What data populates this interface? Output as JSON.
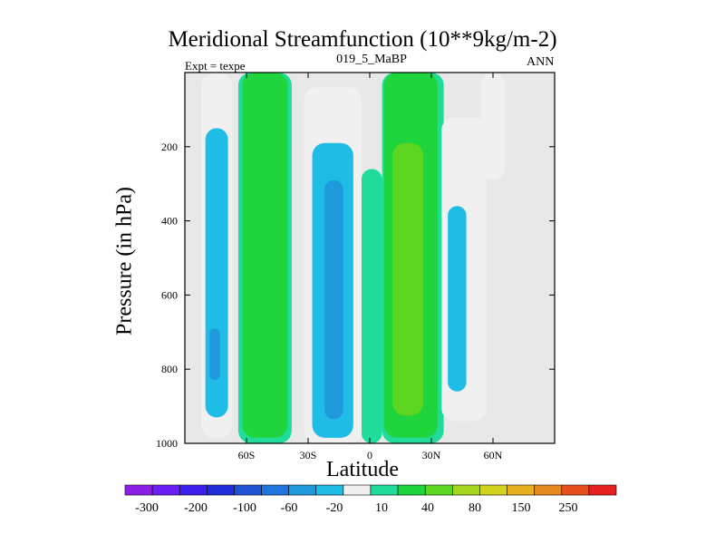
{
  "title": "Meridional Streamfunction (10**9kg/m-2)",
  "subtitle": "019_5_MaBP",
  "expt_label": "Expt = texpe",
  "season": "ANN",
  "chart_data": {
    "type": "heatmap",
    "title": "Meridional Streamfunction (10**9kg/m-2)",
    "subtitle": "019_5_MaBP",
    "xlabel": "Latitude",
    "ylabel": "Pressure (in hPa)",
    "xlim": [
      -90,
      90
    ],
    "ylim": [
      1000,
      0
    ],
    "x_ticks": [
      {
        "value": -60,
        "label": "60S"
      },
      {
        "value": -30,
        "label": "30S"
      },
      {
        "value": 0,
        "label": "0"
      },
      {
        "value": 30,
        "label": "30N"
      },
      {
        "value": 60,
        "label": "60N"
      }
    ],
    "y_ticks": [
      {
        "value": 200,
        "label": "200"
      },
      {
        "value": 400,
        "label": "400"
      },
      {
        "value": 600,
        "label": "600"
      },
      {
        "value": 800,
        "label": "800"
      },
      {
        "value": 1000,
        "label": "1000"
      }
    ],
    "background_color": "#e8e8e8",
    "colorbar": {
      "labels": [
        "-300",
        "-200",
        "-100",
        "-60",
        "-20",
        "10",
        "40",
        "80",
        "150",
        "250"
      ],
      "colors": [
        "#8c1fe6",
        "#6a1ff2",
        "#3c1fea",
        "#1f2bd9",
        "#1f52d4",
        "#1f75d9",
        "#1f98dc",
        "#1fbce6",
        "#f0f0f0",
        "#1fdc9a",
        "#1fd43c",
        "#5cd71f",
        "#a5d71f",
        "#d2d21f",
        "#e6b01f",
        "#e6891f",
        "#e6521f",
        "#e61f1f"
      ]
    },
    "cells": [
      {
        "name": "cell-60s-outer",
        "lat": [
          -82,
          -67
        ],
        "p": [
          0,
          985
        ],
        "level": "-20"
      },
      {
        "name": "cell-60s-mid",
        "lat": [
          -80,
          -69
        ],
        "p": [
          150,
          930
        ],
        "level": "-60"
      },
      {
        "name": "cell-60s-core",
        "lat": [
          -78,
          -73
        ],
        "p": [
          690,
          830
        ],
        "level": "-100"
      },
      {
        "name": "cell-50s-outer",
        "lat": [
          -64,
          -38
        ],
        "p": [
          0,
          1000
        ],
        "level": "10"
      },
      {
        "name": "cell-50s-mid",
        "lat": [
          -62,
          -40
        ],
        "p": [
          0,
          985
        ],
        "level": "40"
      },
      {
        "name": "cell-20s-outer",
        "lat": [
          -32,
          -4
        ],
        "p": [
          40,
          1000
        ],
        "level": "-20"
      },
      {
        "name": "cell-20s-mid",
        "lat": [
          -28,
          -8
        ],
        "p": [
          190,
          985
        ],
        "level": "-60"
      },
      {
        "name": "cell-20s-core",
        "lat": [
          -22,
          -13
        ],
        "p": [
          290,
          935
        ],
        "level": "-100"
      },
      {
        "name": "cell-15n-outer",
        "lat": [
          6,
          36
        ],
        "p": [
          0,
          1000
        ],
        "level": "10"
      },
      {
        "name": "cell-15n-mid",
        "lat": [
          7,
          33
        ],
        "p": [
          0,
          985
        ],
        "level": "40"
      },
      {
        "name": "cell-15n-core",
        "lat": [
          11,
          26
        ],
        "p": [
          190,
          925
        ],
        "level": "80"
      },
      {
        "name": "cell-45n-outer",
        "lat": [
          35,
          57
        ],
        "p": [
          120,
          940
        ],
        "level": "-20"
      },
      {
        "name": "cell-45n-mid",
        "lat": [
          38,
          47
        ],
        "p": [
          360,
          860
        ],
        "level": "-60"
      },
      {
        "name": "cell-0n-patch",
        "lat": [
          -4,
          6
        ],
        "p": [
          260,
          1000
        ],
        "level": "10"
      },
      {
        "name": "cell-70n-cap",
        "lat": [
          54,
          66
        ],
        "p": [
          0,
          290
        ],
        "level": "-20"
      }
    ]
  }
}
